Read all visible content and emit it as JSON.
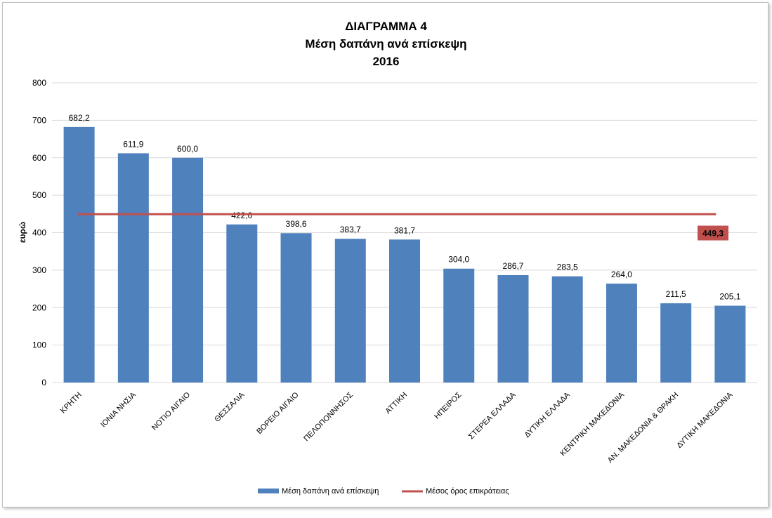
{
  "chart_data": {
    "type": "bar",
    "title_lines": [
      "ΔΙΑΓΡΑΜΜΑ 4",
      "Μέση δαπάνη ανά επίσκεψη",
      "2016"
    ],
    "ylabel": "ευρώ",
    "xlabel": "",
    "ylim": [
      0,
      800
    ],
    "yticks": [
      0,
      100,
      200,
      300,
      400,
      500,
      600,
      700,
      800
    ],
    "grid": true,
    "categories": [
      "ΚΡΗΤΗ",
      "ΙΟΝΙΑ ΝΗΣΙΑ",
      "ΝΟΤΙΟ ΑΙΓΑΙΟ",
      "ΘΕΣΣΑΛΙΑ",
      "ΒΟΡΕΙΟ ΑΙΓΑΙΟ",
      "ΠΕΛΟΠΟΝΝΗΣΟΣ",
      "ΑΤΤΙΚΗ",
      "ΗΠΕΙΡΟΣ",
      "ΣΤΕΡΕΑ ΕΛΛΑΔΑ",
      "ΔΥΤΙΚΗ ΕΛΛΑΔΑ",
      "ΚΕΝΤΡΙΚΗ ΜΑΚΕΔΟΝΙΑ",
      "ΑΝ. ΜΑΚΕΔΟΝΙΑ & ΘΡΑΚΗ",
      "ΔΥΤΙΚΗ ΜΑΚΕΔΟΝΙΑ"
    ],
    "series": [
      {
        "name": "Μέση δαπάνη ανά επίσκεψη",
        "type": "bar",
        "color": "#4f81bd",
        "values": [
          682.2,
          611.9,
          600.0,
          422.0,
          398.6,
          383.7,
          381.7,
          304.0,
          286.7,
          283.5,
          264.0,
          211.5,
          205.1
        ],
        "labels": [
          "682,2",
          "611,9",
          "600,0",
          "422,0",
          "398,6",
          "383,7",
          "381,7",
          "304,0",
          "286,7",
          "283,5",
          "264,0",
          "211,5",
          "205,1"
        ]
      },
      {
        "name": "Μέσος όρος επικράτειας",
        "type": "line",
        "color": "#c0504d",
        "value": 449.3,
        "label": "449,3"
      }
    ],
    "legend_position": "bottom"
  }
}
